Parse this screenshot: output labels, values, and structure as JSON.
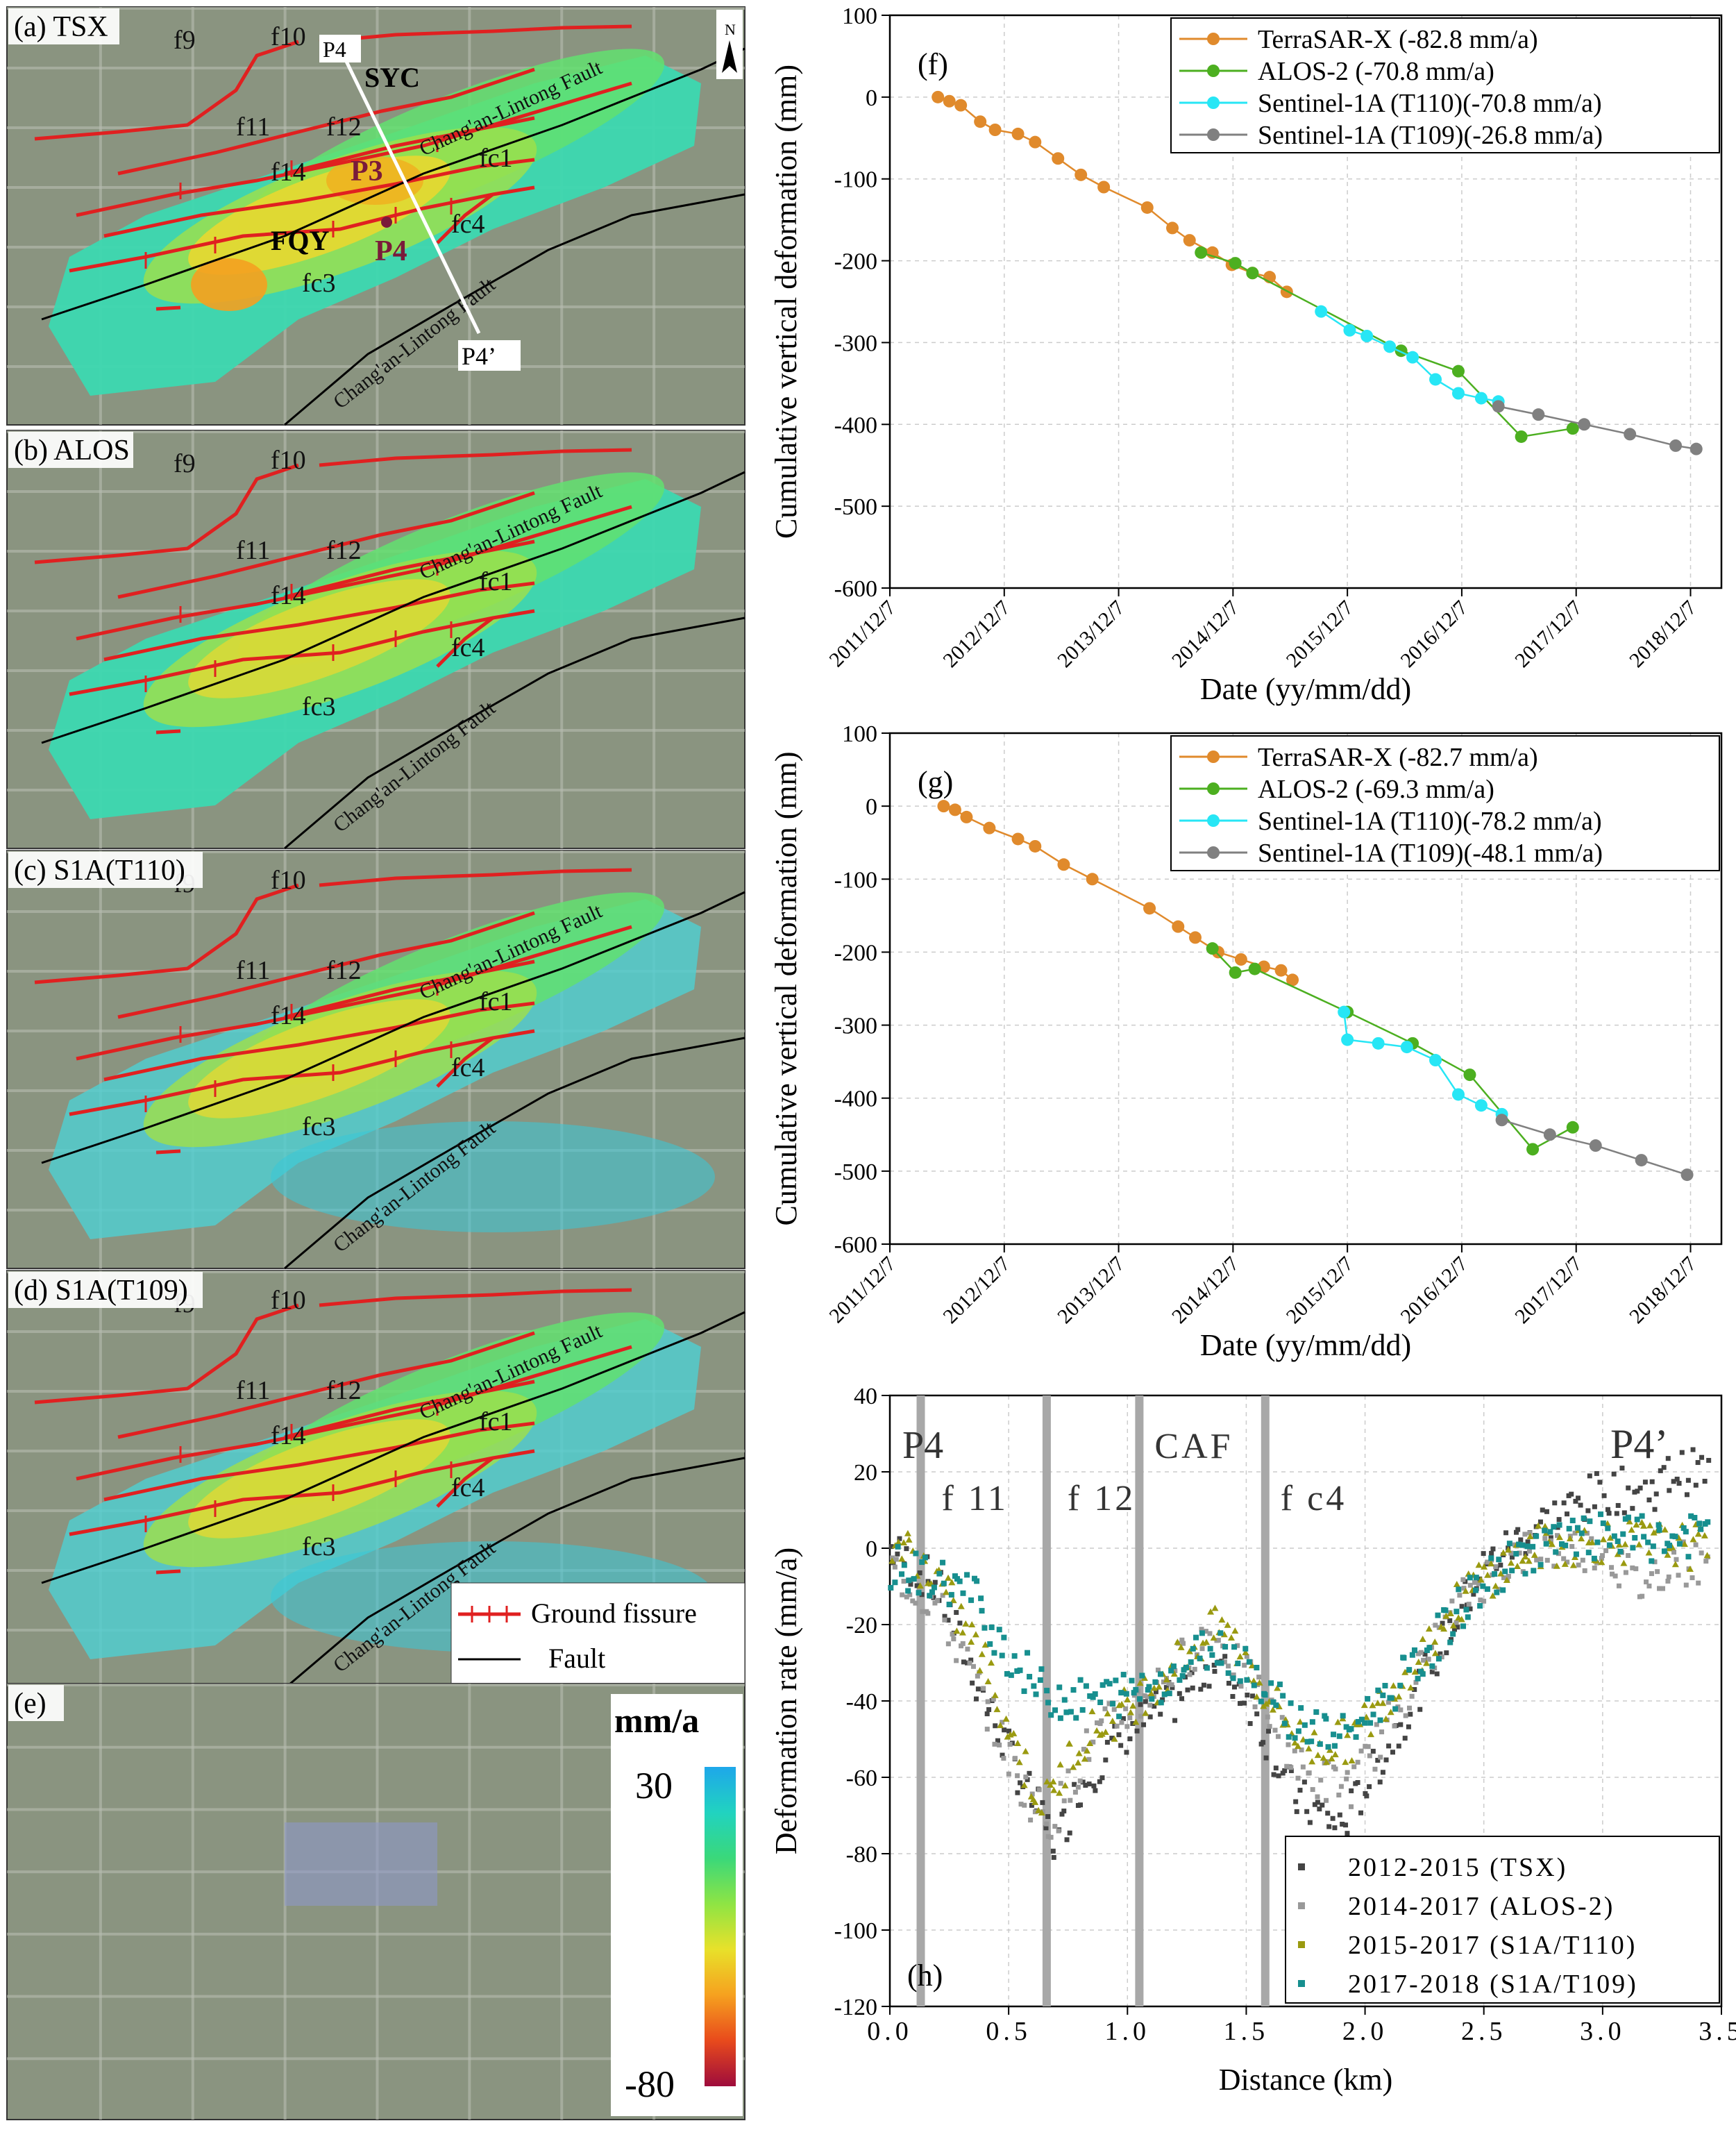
{
  "colors": {
    "tsx": "#e08a2c",
    "alos": "#4caf20",
    "t110": "#27e6f5",
    "t109": "#808080",
    "h_tsx": "#444444",
    "h_alos": "#999999",
    "h_t110": "#9a9a10",
    "h_t109": "#178f8f",
    "fissure": "#e02020",
    "fault": "#000000"
  },
  "maps": [
    {
      "id": "a",
      "label": "(a) TSX",
      "show_sites": true,
      "show_profile": true,
      "show_north": true
    },
    {
      "id": "b",
      "label": "(b) ALOS"
    },
    {
      "id": "c",
      "label": "(c) S1A(T110)"
    },
    {
      "id": "d",
      "label": "(d) S1A(T109)",
      "show_legend": true
    },
    {
      "id": "e",
      "label": "(e)",
      "show_colorbar": true
    }
  ],
  "map_labels": {
    "f9": "f9",
    "f10": "f10",
    "f11": "f11",
    "f12": "f12",
    "f14": "f14",
    "fc1": "fc1",
    "fc3": "fc3",
    "fc4": "fc4",
    "fault": "Chang'an-Lintong Fault",
    "syc": "SYC",
    "fqy": "FQY",
    "p3": "P3",
    "p4": "P4",
    "profile_start": "P4",
    "profile_end": "P4’",
    "north": "N"
  },
  "map_legend": {
    "fissure": "Ground fissure",
    "fault": "Fault"
  },
  "colorbar": {
    "unit": "mm/a",
    "max": "30",
    "min": "-80",
    "stops": [
      "#1ea7ea",
      "#21d3c0",
      "#3ad87a",
      "#8ee444",
      "#e8e12a",
      "#f6a11f",
      "#e84a1c",
      "#9e0c3c"
    ]
  },
  "chart_data": [
    {
      "id": "f",
      "type": "line",
      "panel_label": "(f)",
      "xlabel": "Date (yy/mm/dd)",
      "ylabel": "Cumulative vertical deformation (mm)",
      "xlim": [
        2011.93,
        2019.2
      ],
      "xticks": [
        2011.93,
        2012.93,
        2013.93,
        2014.93,
        2015.93,
        2016.93,
        2017.93,
        2018.93
      ],
      "xticklabels": [
        "2011/12/7",
        "2012/12/7",
        "2013/12/7",
        "2014/12/7",
        "2015/12/7",
        "2016/12/7",
        "2017/12/7",
        "2018/12/7"
      ],
      "ylim": [
        -600,
        100
      ],
      "yticks": [
        100,
        0,
        -100,
        -200,
        -300,
        -400,
        -500,
        -600
      ],
      "series": [
        {
          "name": "TerraSAR-X (-82.8 mm/a)",
          "color": "tsx",
          "points": [
            [
              2012.35,
              0
            ],
            [
              2012.45,
              -5
            ],
            [
              2012.55,
              -10
            ],
            [
              2012.72,
              -30
            ],
            [
              2012.85,
              -40
            ],
            [
              2013.05,
              -45
            ],
            [
              2013.2,
              -55
            ],
            [
              2013.4,
              -75
            ],
            [
              2013.6,
              -95
            ],
            [
              2013.8,
              -110
            ],
            [
              2014.18,
              -135
            ],
            [
              2014.4,
              -160
            ],
            [
              2014.55,
              -175
            ],
            [
              2014.75,
              -190
            ],
            [
              2014.92,
              -205
            ],
            [
              2015.1,
              -215
            ],
            [
              2015.25,
              -220
            ],
            [
              2015.4,
              -238
            ]
          ]
        },
        {
          "name": "ALOS-2 (-70.8 mm/a)",
          "color": "alos",
          "points": [
            [
              2014.65,
              -190
            ],
            [
              2014.95,
              -203
            ],
            [
              2015.1,
              -215
            ],
            [
              2016.4,
              -310
            ],
            [
              2016.9,
              -335
            ],
            [
              2017.45,
              -415
            ],
            [
              2017.9,
              -405
            ]
          ]
        },
        {
          "name": "Sentinel-1A (T110)(-70.8 mm/a)",
          "color": "t110",
          "points": [
            [
              2015.7,
              -262
            ],
            [
              2015.95,
              -285
            ],
            [
              2016.1,
              -292
            ],
            [
              2016.3,
              -305
            ],
            [
              2016.5,
              -318
            ],
            [
              2016.7,
              -345
            ],
            [
              2016.9,
              -362
            ],
            [
              2017.1,
              -368
            ],
            [
              2017.25,
              -372
            ]
          ]
        },
        {
          "name": "Sentinel-1A (T109)(-26.8 mm/a)",
          "color": "t109",
          "points": [
            [
              2017.25,
              -378
            ],
            [
              2017.6,
              -388
            ],
            [
              2018.0,
              -400
            ],
            [
              2018.4,
              -412
            ],
            [
              2018.8,
              -426
            ],
            [
              2018.98,
              -430
            ]
          ]
        }
      ]
    },
    {
      "id": "g",
      "type": "line",
      "panel_label": "(g)",
      "xlabel": "Date (yy/mm/dd)",
      "ylabel": "Cumulative vertical deformation (mm)",
      "xlim": [
        2011.93,
        2019.2
      ],
      "xticks": [
        2011.93,
        2012.93,
        2013.93,
        2014.93,
        2015.93,
        2016.93,
        2017.93,
        2018.93
      ],
      "xticklabels": [
        "2011/12/7",
        "2012/12/7",
        "2013/12/7",
        "2014/12/7",
        "2015/12/7",
        "2016/12/7",
        "2017/12/7",
        "2018/12/7"
      ],
      "ylim": [
        -600,
        100
      ],
      "yticks": [
        100,
        0,
        -100,
        -200,
        -300,
        -400,
        -500,
        -600
      ],
      "series": [
        {
          "name": "TerraSAR-X (-82.7 mm/a)",
          "color": "tsx",
          "points": [
            [
              2012.4,
              0
            ],
            [
              2012.5,
              -5
            ],
            [
              2012.6,
              -15
            ],
            [
              2012.8,
              -30
            ],
            [
              2013.05,
              -45
            ],
            [
              2013.2,
              -55
            ],
            [
              2013.45,
              -80
            ],
            [
              2013.7,
              -100
            ],
            [
              2014.2,
              -140
            ],
            [
              2014.45,
              -165
            ],
            [
              2014.6,
              -180
            ],
            [
              2014.8,
              -200
            ],
            [
              2015.0,
              -210
            ],
            [
              2015.2,
              -220
            ],
            [
              2015.35,
              -225
            ],
            [
              2015.45,
              -238
            ]
          ]
        },
        {
          "name": "ALOS-2 (-69.3 mm/a)",
          "color": "alos",
          "points": [
            [
              2014.75,
              -195
            ],
            [
              2014.95,
              -228
            ],
            [
              2015.12,
              -223
            ],
            [
              2015.93,
              -282
            ],
            [
              2016.5,
              -325
            ],
            [
              2017.0,
              -368
            ],
            [
              2017.55,
              -470
            ],
            [
              2017.9,
              -440
            ]
          ]
        },
        {
          "name": "Sentinel-1A (T110)(-78.2 mm/a)",
          "color": "t110",
          "points": [
            [
              2015.9,
              -282
            ],
            [
              2015.93,
              -320
            ],
            [
              2016.2,
              -325
            ],
            [
              2016.45,
              -330
            ],
            [
              2016.7,
              -348
            ],
            [
              2016.9,
              -395
            ],
            [
              2017.1,
              -410
            ],
            [
              2017.28,
              -422
            ]
          ]
        },
        {
          "name": "Sentinel-1A (T109)(-48.1 mm/a)",
          "color": "t109",
          "points": [
            [
              2017.28,
              -430
            ],
            [
              2017.7,
              -450
            ],
            [
              2018.1,
              -465
            ],
            [
              2018.5,
              -485
            ],
            [
              2018.9,
              -505
            ]
          ]
        }
      ]
    },
    {
      "id": "h",
      "type": "scatter",
      "panel_label": "(h)",
      "xlabel": "Distance (km)",
      "ylabel": "Deformation rate (mm/a)",
      "xlim": [
        0,
        3.5
      ],
      "xticks": [
        0,
        0.5,
        1.0,
        1.5,
        2.0,
        2.5,
        3.0,
        3.5
      ],
      "xticklabels": [
        "0.0",
        "0.5",
        "1.0",
        "1.5",
        "2.0",
        "2.5",
        "3.0",
        "3.5"
      ],
      "ylim": [
        -120,
        40
      ],
      "yticks": [
        40,
        20,
        0,
        -20,
        -40,
        -60,
        -80,
        -100,
        -120
      ],
      "vlines": [
        {
          "x": 0.13,
          "label": "P4"
        },
        {
          "x": 0.66,
          "label": "f 11"
        },
        {
          "x": 1.05,
          "label": "f 12"
        },
        {
          "x": 1.58,
          "label": "CAF"
        },
        {
          "x": 1.58,
          "label": "f c4"
        }
      ],
      "end_label": "P4’",
      "series": [
        {
          "name": "2012-2015 (TSX)",
          "color": "h_tsx",
          "profile": [
            [
              0,
              0
            ],
            [
              0.2,
              -10
            ],
            [
              0.4,
              -40
            ],
            [
              0.55,
              -60
            ],
            [
              0.7,
              -78
            ],
            [
              0.8,
              -62
            ],
            [
              1.0,
              -48
            ],
            [
              1.2,
              -40
            ],
            [
              1.35,
              -30
            ],
            [
              1.5,
              -38
            ],
            [
              1.7,
              -65
            ],
            [
              1.9,
              -73
            ],
            [
              2.1,
              -52
            ],
            [
              2.3,
              -28
            ],
            [
              2.5,
              -5
            ],
            [
              2.7,
              5
            ],
            [
              3.0,
              15
            ],
            [
              3.2,
              15
            ],
            [
              3.3,
              20
            ],
            [
              3.45,
              20
            ]
          ]
        },
        {
          "name": "2014-2017 (ALOS-2)",
          "color": "h_alos",
          "profile": [
            [
              0,
              -5
            ],
            [
              0.2,
              -15
            ],
            [
              0.4,
              -40
            ],
            [
              0.55,
              -62
            ],
            [
              0.68,
              -72
            ],
            [
              0.85,
              -50
            ],
            [
              1.05,
              -40
            ],
            [
              1.25,
              -28
            ],
            [
              1.35,
              -22
            ],
            [
              1.55,
              -38
            ],
            [
              1.75,
              -60
            ],
            [
              1.95,
              -62
            ],
            [
              2.2,
              -35
            ],
            [
              2.45,
              -10
            ],
            [
              2.7,
              0
            ],
            [
              3.0,
              0
            ],
            [
              3.15,
              -10
            ],
            [
              3.3,
              -3
            ],
            [
              3.45,
              -5
            ]
          ]
        },
        {
          "name": "2015-2017 (S1A/T110)",
          "color": "h_t110",
          "profile": [
            [
              0,
              3
            ],
            [
              0.2,
              -8
            ],
            [
              0.4,
              -30
            ],
            [
              0.55,
              -55
            ],
            [
              0.65,
              -68
            ],
            [
              0.8,
              -50
            ],
            [
              1.0,
              -42
            ],
            [
              1.2,
              -30
            ],
            [
              1.4,
              -20
            ],
            [
              1.55,
              -35
            ],
            [
              1.75,
              -52
            ],
            [
              1.95,
              -50
            ],
            [
              2.2,
              -30
            ],
            [
              2.45,
              -10
            ],
            [
              2.7,
              0
            ],
            [
              3.0,
              2
            ],
            [
              3.3,
              1
            ],
            [
              3.45,
              0
            ]
          ]
        },
        {
          "name": "2017-2018 (S1A/T109)",
          "color": "h_t109",
          "profile": [
            [
              0,
              -5
            ],
            [
              0.2,
              -8
            ],
            [
              0.35,
              -12
            ],
            [
              0.5,
              -28
            ],
            [
              0.65,
              -38
            ],
            [
              0.8,
              -40
            ],
            [
              1.0,
              -38
            ],
            [
              1.2,
              -33
            ],
            [
              1.35,
              -25
            ],
            [
              1.5,
              -30
            ],
            [
              1.7,
              -45
            ],
            [
              1.9,
              -50
            ],
            [
              2.2,
              -32
            ],
            [
              2.45,
              -12
            ],
            [
              2.7,
              0
            ],
            [
              3.0,
              3
            ],
            [
              3.3,
              2
            ],
            [
              3.45,
              5
            ]
          ]
        }
      ]
    }
  ]
}
